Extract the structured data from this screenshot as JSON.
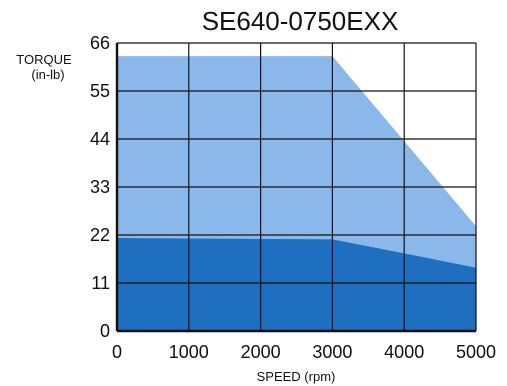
{
  "chart_data": {
    "type": "area",
    "title": "SE640-0750EXX",
    "ylabel_line1": "TORQUE",
    "ylabel_line2": "(in-lb)",
    "xlabel": "SPEED (rpm)",
    "xlim": [
      0,
      5000
    ],
    "ylim": [
      0,
      66
    ],
    "x_ticks": [
      0,
      1000,
      2000,
      3000,
      4000,
      5000
    ],
    "y_ticks": [
      0,
      11,
      22,
      33,
      44,
      55,
      66
    ],
    "grid": true,
    "legend": "none",
    "series": [
      {
        "color": "#8bb8ea",
        "x": [
          0,
          3000,
          5000
        ],
        "y": [
          63,
          63,
          24
        ]
      },
      {
        "color": "#1e6fbf",
        "x": [
          0,
          3000,
          4000,
          5000
        ],
        "y": [
          21.3,
          21.0,
          17.8,
          14.5
        ]
      }
    ]
  }
}
